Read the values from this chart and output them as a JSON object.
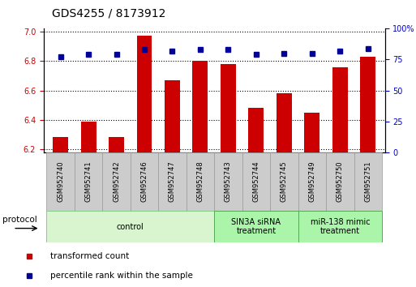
{
  "title": "GDS4255 / 8173912",
  "samples": [
    "GSM952740",
    "GSM952741",
    "GSM952742",
    "GSM952746",
    "GSM952747",
    "GSM952748",
    "GSM952743",
    "GSM952744",
    "GSM952745",
    "GSM952749",
    "GSM952750",
    "GSM952751"
  ],
  "transformed_count": [
    6.28,
    6.39,
    6.28,
    6.97,
    6.67,
    6.8,
    6.78,
    6.48,
    6.58,
    6.45,
    6.76,
    6.83
  ],
  "percentile_rank": [
    77,
    79,
    79,
    83,
    82,
    83,
    83,
    79,
    80,
    80,
    82,
    84
  ],
  "bar_color": "#cc0000",
  "dot_color": "#000099",
  "ylim_left": [
    6.18,
    7.02
  ],
  "ylim_right": [
    0,
    100
  ],
  "yticks_left": [
    6.2,
    6.4,
    6.6,
    6.8,
    7.0
  ],
  "yticks_right": [
    0,
    25,
    50,
    75,
    100
  ],
  "bar_bottom": 6.18,
  "groups_def": [
    {
      "label": "control",
      "start": 0,
      "end": 5,
      "facecolor": "#d8f5d0",
      "edgecolor": "#88cc88"
    },
    {
      "label": "SIN3A siRNA\ntreatment",
      "start": 6,
      "end": 8,
      "facecolor": "#aaf5aa",
      "edgecolor": "#55aa55"
    },
    {
      "label": "miR-138 mimic\ntreatment",
      "start": 9,
      "end": 11,
      "facecolor": "#aaf5aa",
      "edgecolor": "#55aa55"
    }
  ],
  "sample_box_color": "#cccccc",
  "sample_box_edge": "#999999",
  "legend_items": [
    {
      "label": "transformed count",
      "color": "#cc0000"
    },
    {
      "label": "percentile rank within the sample",
      "color": "#000099"
    }
  ],
  "bar_width": 0.55,
  "title_fontsize": 10,
  "tick_fontsize": 7,
  "sample_fontsize": 6,
  "group_fontsize": 7,
  "legend_fontsize": 7.5
}
